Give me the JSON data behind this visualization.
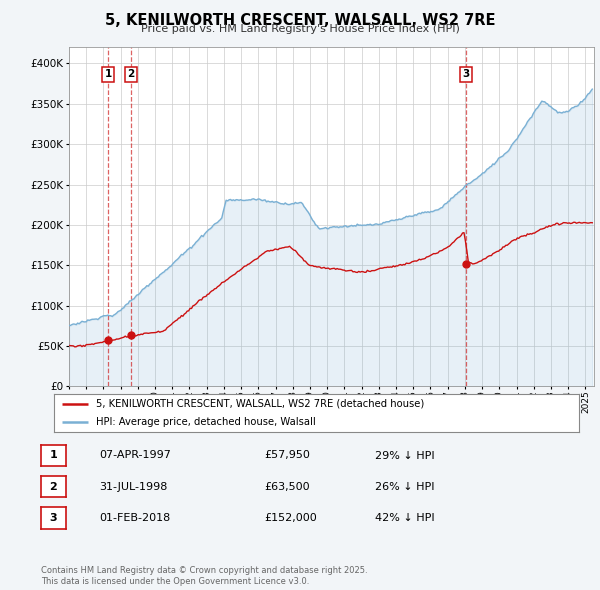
{
  "title": "5, KENILWORTH CRESCENT, WALSALL, WS2 7RE",
  "subtitle": "Price paid vs. HM Land Registry's House Price Index (HPI)",
  "hpi_color": "#7ab0d4",
  "hpi_fill": "#d6e8f5",
  "price_color": "#cc1111",
  "background_color": "#f2f5f8",
  "plot_bg_color": "#ffffff",
  "ylim": [
    0,
    420000
  ],
  "yticks": [
    0,
    50000,
    100000,
    150000,
    200000,
    250000,
    300000,
    350000,
    400000
  ],
  "xlim_start": 1995.0,
  "xlim_end": 2025.5,
  "sale_points": [
    {
      "year": 1997.27,
      "price": 57950,
      "label": "1"
    },
    {
      "year": 1998.58,
      "price": 63500,
      "label": "2"
    },
    {
      "year": 2018.08,
      "price": 152000,
      "label": "3"
    }
  ],
  "vline_years": [
    1997.27,
    1998.58,
    2018.08
  ],
  "legend_line1": "5, KENILWORTH CRESCENT, WALSALL, WS2 7RE (detached house)",
  "legend_line2": "HPI: Average price, detached house, Walsall",
  "table_rows": [
    {
      "num": "1",
      "date": "07-APR-1997",
      "price": "£57,950",
      "hpi": "29% ↓ HPI"
    },
    {
      "num": "2",
      "date": "31-JUL-1998",
      "price": "£63,500",
      "hpi": "26% ↓ HPI"
    },
    {
      "num": "3",
      "date": "01-FEB-2018",
      "price": "£152,000",
      "hpi": "42% ↓ HPI"
    }
  ],
  "footer": "Contains HM Land Registry data © Crown copyright and database right 2025.\nThis data is licensed under the Open Government Licence v3.0.",
  "xtick_years": [
    1995,
    1996,
    1997,
    1998,
    1999,
    2000,
    2001,
    2002,
    2003,
    2004,
    2005,
    2006,
    2007,
    2008,
    2009,
    2010,
    2011,
    2012,
    2013,
    2014,
    2015,
    2016,
    2017,
    2018,
    2019,
    2020,
    2021,
    2022,
    2023,
    2024,
    2025
  ]
}
